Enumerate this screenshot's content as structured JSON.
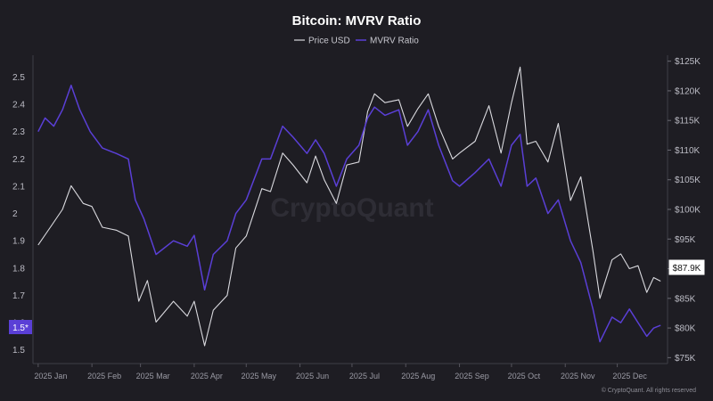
{
  "chart_data": {
    "type": "line",
    "title": "Bitcoin: MVRV Ratio",
    "legend": [
      "Price USD",
      "MVRV Ratio"
    ],
    "x_labels": [
      "2025 Jan",
      "2025 Feb",
      "2025 Mar",
      "2025 Apr",
      "2025 May",
      "2025 Jun",
      "2025 Jul",
      "2025 Aug",
      "2025 Sep",
      "2025 Oct",
      "2025 Nov",
      "2025 Dec"
    ],
    "left_axis": {
      "ticks": [
        "1.5",
        "1.6",
        "1.7",
        "1.8",
        "1.9",
        "2",
        "2.1",
        "2.2",
        "2.3",
        "2.4",
        "2.5"
      ],
      "range": [
        1.45,
        2.58
      ]
    },
    "right_axis": {
      "ticks": [
        "$75K",
        "$80K",
        "$85K",
        "$90K",
        "$95K",
        "$100K",
        "$105K",
        "$110K",
        "$115K",
        "$120K",
        "$125K"
      ],
      "range": [
        74000,
        126000
      ]
    },
    "series": [
      {
        "name": "Price USD",
        "color": "#d9d9de",
        "axis": "right",
        "x": [
          "2025-01-01",
          "2025-01-08",
          "2025-01-15",
          "2025-01-20",
          "2025-01-27",
          "2025-02-01",
          "2025-02-07",
          "2025-02-15",
          "2025-02-22",
          "2025-02-28",
          "2025-03-05",
          "2025-03-10",
          "2025-03-20",
          "2025-03-28",
          "2025-04-01",
          "2025-04-07",
          "2025-04-12",
          "2025-04-20",
          "2025-04-25",
          "2025-05-01",
          "2025-05-10",
          "2025-05-15",
          "2025-05-22",
          "2025-05-28",
          "2025-06-05",
          "2025-06-10",
          "2025-06-15",
          "2025-06-22",
          "2025-06-28",
          "2025-07-05",
          "2025-07-10",
          "2025-07-14",
          "2025-07-20",
          "2025-07-28",
          "2025-08-02",
          "2025-08-08",
          "2025-08-14",
          "2025-08-20",
          "2025-08-28",
          "2025-09-01",
          "2025-09-10",
          "2025-09-18",
          "2025-09-25",
          "2025-10-01",
          "2025-10-06",
          "2025-10-10",
          "2025-10-15",
          "2025-10-22",
          "2025-10-28",
          "2025-11-04",
          "2025-11-10",
          "2025-11-17",
          "2025-11-21",
          "2025-11-28",
          "2025-12-03",
          "2025-12-08",
          "2025-12-13",
          "2025-12-18",
          "2025-12-22",
          "2025-12-26"
        ],
        "values": [
          94000,
          97000,
          100000,
          104000,
          101000,
          100500,
          97000,
          96500,
          95500,
          84500,
          88000,
          81000,
          84500,
          82000,
          84500,
          77000,
          83000,
          85500,
          93500,
          95500,
          103500,
          103000,
          109500,
          107500,
          104500,
          109000,
          105000,
          101000,
          107500,
          108000,
          116500,
          119500,
          118000,
          118500,
          114000,
          117000,
          119500,
          114000,
          108500,
          109500,
          111500,
          117500,
          109500,
          118000,
          124000,
          111000,
          111500,
          108000,
          114500,
          101500,
          105500,
          93000,
          85000,
          91500,
          92500,
          90000,
          90500,
          86000,
          88500,
          87900
        ]
      },
      {
        "name": "MVRV Ratio",
        "color": "#5a3fd6",
        "axis": "left",
        "x": [
          "2025-01-01",
          "2025-01-05",
          "2025-01-10",
          "2025-01-15",
          "2025-01-20",
          "2025-01-25",
          "2025-01-31",
          "2025-02-07",
          "2025-02-15",
          "2025-02-22",
          "2025-02-26",
          "2025-03-03",
          "2025-03-10",
          "2025-03-20",
          "2025-03-28",
          "2025-04-01",
          "2025-04-07",
          "2025-04-12",
          "2025-04-20",
          "2025-04-25",
          "2025-05-01",
          "2025-05-10",
          "2025-05-15",
          "2025-05-22",
          "2025-05-28",
          "2025-06-05",
          "2025-06-10",
          "2025-06-15",
          "2025-06-22",
          "2025-06-28",
          "2025-07-05",
          "2025-07-10",
          "2025-07-14",
          "2025-07-20",
          "2025-07-28",
          "2025-08-02",
          "2025-08-08",
          "2025-08-14",
          "2025-08-20",
          "2025-08-28",
          "2025-09-01",
          "2025-09-10",
          "2025-09-18",
          "2025-09-25",
          "2025-10-01",
          "2025-10-06",
          "2025-10-10",
          "2025-10-15",
          "2025-10-22",
          "2025-10-28",
          "2025-11-04",
          "2025-11-10",
          "2025-11-17",
          "2025-11-21",
          "2025-11-28",
          "2025-12-03",
          "2025-12-08",
          "2025-12-13",
          "2025-12-18",
          "2025-12-22",
          "2025-12-26"
        ],
        "values": [
          2.3,
          2.35,
          2.32,
          2.38,
          2.47,
          2.38,
          2.3,
          2.24,
          2.22,
          2.2,
          2.05,
          1.98,
          1.85,
          1.9,
          1.88,
          1.92,
          1.72,
          1.85,
          1.9,
          2.0,
          2.05,
          2.2,
          2.2,
          2.32,
          2.28,
          2.22,
          2.27,
          2.22,
          2.1,
          2.2,
          2.25,
          2.35,
          2.39,
          2.36,
          2.38,
          2.25,
          2.3,
          2.38,
          2.25,
          2.12,
          2.1,
          2.15,
          2.2,
          2.1,
          2.25,
          2.29,
          2.1,
          2.13,
          2.0,
          2.05,
          1.9,
          1.82,
          1.65,
          1.53,
          1.62,
          1.6,
          1.65,
          1.6,
          1.55,
          1.58,
          1.59
        ]
      }
    ],
    "price_tag": "$87.9K",
    "mvrv_tag": "1.5*",
    "watermark": "CryptoQuant",
    "credit": "© CryptoQuant. All rights reserved"
  }
}
